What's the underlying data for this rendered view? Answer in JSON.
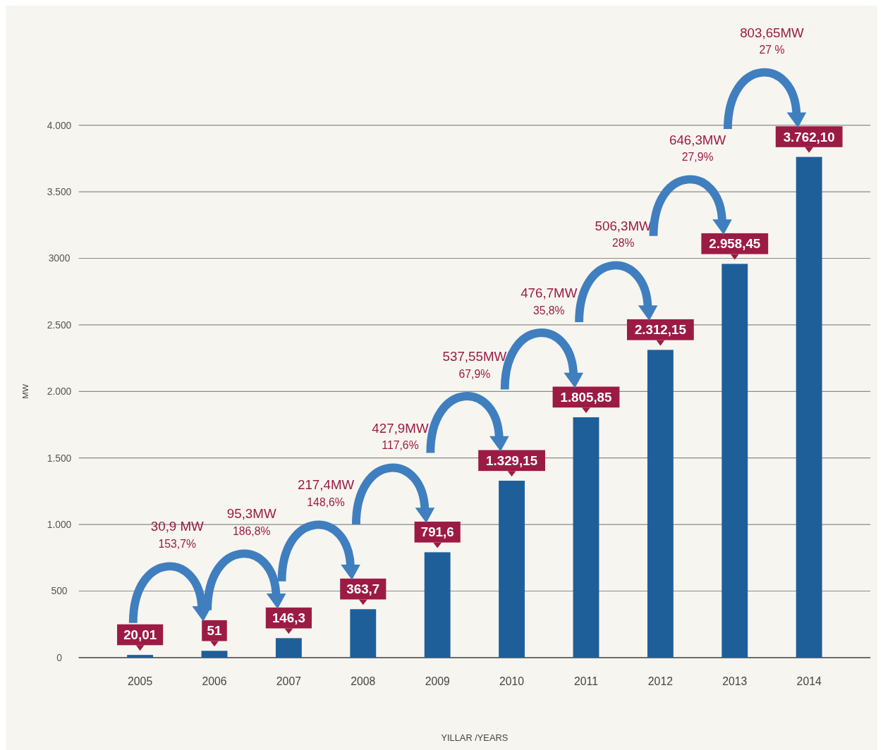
{
  "chart_data": {
    "type": "bar",
    "xlabel": "YILLAR /YEARS",
    "ylabel": "MW",
    "categories": [
      "2005",
      "2006",
      "2007",
      "2008",
      "2009",
      "2010",
      "2011",
      "2012",
      "2013",
      "2014"
    ],
    "values": [
      20.01,
      51,
      146.3,
      363.7,
      791.6,
      1329.15,
      1805.85,
      2312.15,
      2958.45,
      3762.1
    ],
    "value_labels": [
      "20,01",
      "51",
      "146,3",
      "363,7",
      "791,6",
      "1.329,15",
      "1.805,85",
      "2.312,15",
      "2.958,45",
      "3.762,10"
    ],
    "color": "#1f5f99",
    "ylim": [
      0,
      4000
    ],
    "yticks": [
      0,
      500,
      {
        "value": 1000,
        "label": "1.000"
      },
      {
        "value": 1500,
        "label": "1.500"
      },
      {
        "value": 2000,
        "label": "2.000"
      },
      {
        "value": 2500,
        "label": "2.500"
      },
      3000,
      {
        "value": 3500,
        "label": "3.500"
      },
      {
        "value": 4000,
        "label": "4.000"
      }
    ],
    "grid": "y",
    "annotations": [
      "30,9 MW",
      "153,7%",
      "95,3MW",
      "186,8%",
      "217,4MW",
      "148,6%",
      "427,9MW",
      "117,6%",
      "537,55MW",
      "67,9%",
      "476,7MW",
      "35,8%",
      "506,3MW",
      "28%",
      "646,3MW",
      "27,9%",
      "803,65MW",
      "27 %"
    ]
  }
}
